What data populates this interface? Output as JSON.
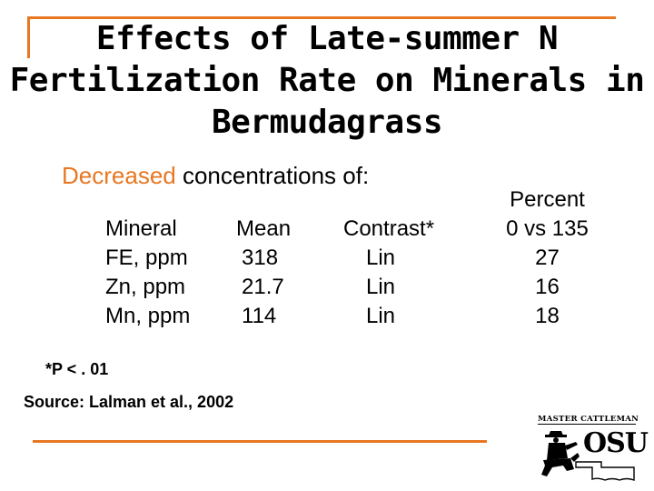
{
  "title": {
    "line1": "Effects of Late-summer N",
    "line2": "Fertilization Rate on Minerals in",
    "line3": "Bermudagrass"
  },
  "subtitle": {
    "accent": "Decreased",
    "rest": " concentrations of:"
  },
  "table": {
    "headers": {
      "mineral": "Mineral",
      "mean": "Mean",
      "contrast": "Contrast*",
      "percent_line1": "Percent",
      "percent_line2": "0 vs 135"
    },
    "rows": [
      {
        "mineral": "FE, ppm",
        "mean": "318",
        "contrast": "Lin",
        "percent": "27"
      },
      {
        "mineral": "Zn, ppm",
        "mean": "21.7",
        "contrast": "Lin",
        "percent": "16"
      },
      {
        "mineral": "Mn, ppm",
        "mean": "114",
        "contrast": "Lin",
        "percent": "18"
      }
    ]
  },
  "footnote": "*P < . 01",
  "source": "Source: Lalman et al., 2002",
  "logo": {
    "top_text": "Master Cattleman",
    "main_text": "OSU"
  },
  "colors": {
    "accent": "#e87722",
    "text": "#000000",
    "background": "#ffffff"
  }
}
